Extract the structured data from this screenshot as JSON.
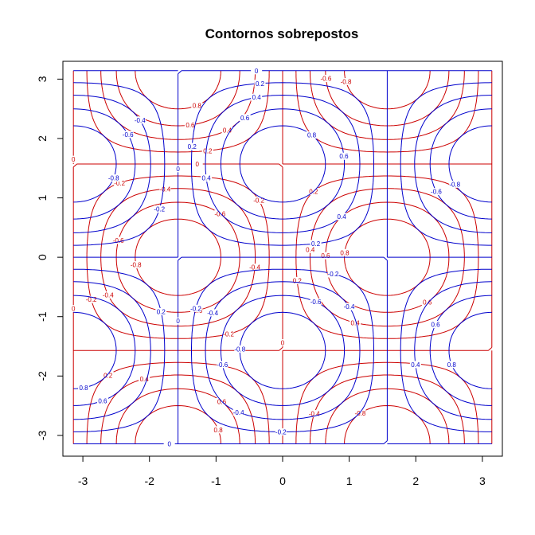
{
  "chart_data": {
    "type": "contour",
    "title": "Contornos sobrepostos",
    "xlabel": "",
    "ylabel": "",
    "xlim": [
      -3.3,
      3.3
    ],
    "ylim": [
      -3.35,
      3.3
    ],
    "x_ticks": [
      -3,
      -2,
      -1,
      0,
      1,
      2,
      3
    ],
    "y_ticks": [
      -3,
      -2,
      -1,
      0,
      1,
      2,
      3
    ],
    "x_tick_labels": [
      "-3",
      "-2",
      "-1",
      "0",
      "1",
      "2",
      "3"
    ],
    "y_tick_labels": [
      "-3",
      "-2",
      "-1",
      "0",
      "1",
      "2",
      "3"
    ],
    "domain": [
      -3.1416,
      3.1416
    ],
    "grid": false,
    "series": [
      {
        "function": "sin(x)*cos(y)",
        "color": "#cc0000",
        "levels": [
          -0.8,
          -0.6,
          -0.4,
          -0.2,
          0,
          0.2,
          0.4,
          0.6,
          0.8
        ]
      },
      {
        "function": "cos(x)*sin(y)",
        "color": "#0000cc",
        "levels": [
          -0.8,
          -0.6,
          -0.4,
          -0.2,
          0,
          0.2,
          0.4,
          0.6,
          0.8
        ]
      }
    ]
  }
}
